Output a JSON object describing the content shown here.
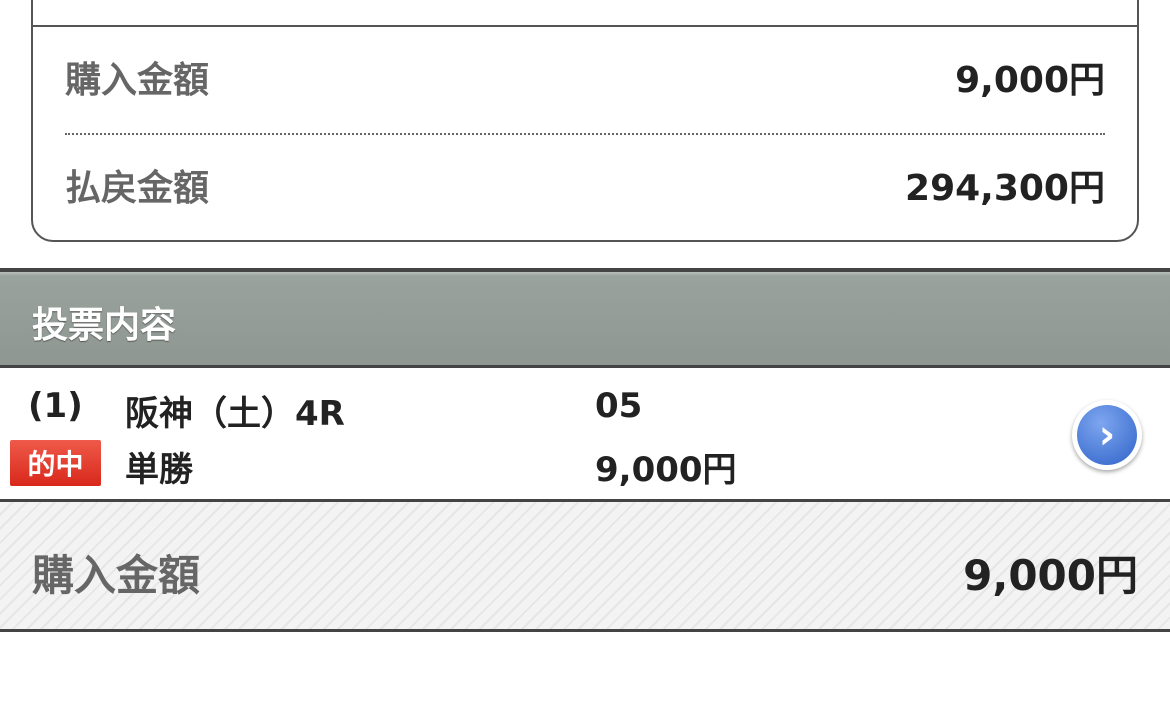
{
  "summary": {
    "purchase_label": "購入金額",
    "purchase_value": "9,000円",
    "payout_label": "払戻金額",
    "payout_value": "294,300円"
  },
  "section_title": "投票内容",
  "bet": {
    "number": "(1)",
    "race": "阪神（土）4R",
    "horse": "05",
    "result_badge": "的中",
    "bet_type": "単勝",
    "amount": "9,000円",
    "badge_color": "#e0342a",
    "detail_icon": "chevron-right-icon"
  },
  "footer": {
    "label": "購入金額",
    "value": "9,000円"
  }
}
